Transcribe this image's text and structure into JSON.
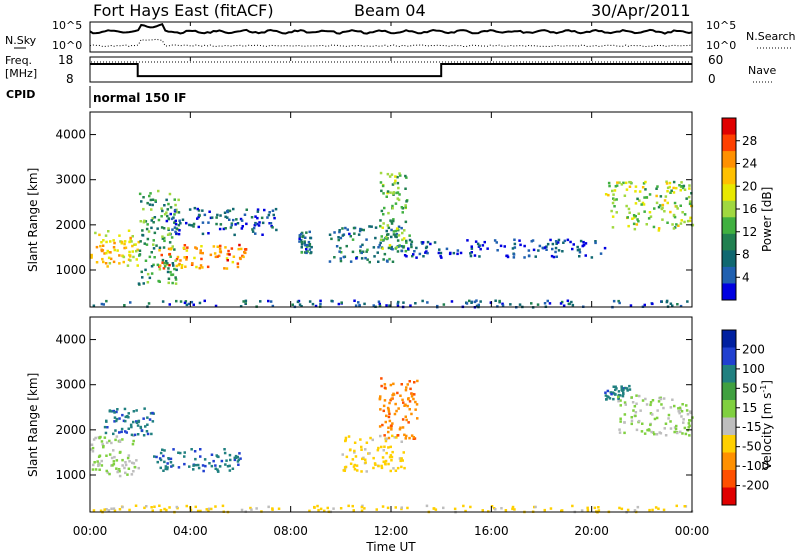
{
  "header": {
    "station": "Fort Hays East (fitACF)",
    "beam": "Beam 04",
    "date": "30/Apr/2011"
  },
  "noise_panel": {
    "left_label": "N.Sky",
    "left_ticks": [
      "10^5",
      "10^0"
    ],
    "right_label": "N.Search",
    "right_ticks": [
      "10^5",
      "10^0"
    ]
  },
  "freq_panel": {
    "left_label_line1": "Freq.",
    "left_label_line2": "[MHz]",
    "left_ticks": [
      "18",
      "8"
    ],
    "right_label": "Nave",
    "right_ticks": [
      "60",
      "0"
    ],
    "freq_mhz_segments": [
      {
        "start_h": 0.0,
        "end_h": 1.9,
        "value": 18.0
      },
      {
        "start_h": 1.9,
        "end_h": 14.0,
        "value": 10.9
      },
      {
        "start_h": 14.0,
        "end_h": 24.0,
        "value": 18.0
      }
    ]
  },
  "cpid": {
    "label": "CPID",
    "value": "normal 150 IF"
  },
  "power_panel": {
    "ylabel": "Slant Range [km]",
    "colorbar_label": "Power [dB]",
    "colorbar_ticks": [
      "28",
      "24",
      "20",
      "16",
      "12",
      "8",
      "4"
    ],
    "colorbar_colors": [
      "#e00000",
      "#ff4000",
      "#ff9000",
      "#ffc000",
      "#e8e800",
      "#a0d840",
      "#40b040",
      "#208050",
      "#106870",
      "#2060b0",
      "#0000e0"
    ]
  },
  "velocity_panel": {
    "ylabel": "Slant Range [km]",
    "colorbar_label_main": "Velocity [m s",
    "colorbar_label_sup": "-1",
    "colorbar_label_end": "]",
    "colorbar_ticks": [
      "200",
      "100",
      "50",
      "15",
      "-15",
      "-50",
      "-100",
      "-200"
    ],
    "colorbar_colors": [
      "#0020a0",
      "#2040d0",
      "#208080",
      "#40a040",
      "#80d040",
      "#bebebe",
      "#ffd000",
      "#ff9000",
      "#ff5000",
      "#e00000"
    ]
  },
  "x_axis": {
    "label": "Time UT",
    "ticks": [
      "00:00",
      "04:00",
      "08:00",
      "12:00",
      "16:00",
      "20:00",
      "00:00"
    ]
  },
  "y_axis_ticks": [
    "4000",
    "3000",
    "2000",
    "1000"
  ],
  "chart_data": {
    "type": "heatmap",
    "x_range_hours": [
      0,
      24
    ],
    "y_range_km": [
      180,
      4500
    ],
    "power_features": [
      {
        "t0": 0.0,
        "t1": 1.9,
        "r0": 1100,
        "r1": 1900,
        "level_db": 20
      },
      {
        "t0": 2.7,
        "t1": 6.2,
        "r0": 1050,
        "r1": 1600,
        "level_db": 24
      },
      {
        "t0": 1.9,
        "t1": 3.5,
        "r0": 700,
        "r1": 2800,
        "level_db": 12
      },
      {
        "t0": 3.0,
        "t1": 7.5,
        "r0": 1800,
        "r1": 2400,
        "level_db": 6
      },
      {
        "t0": 8.3,
        "t1": 8.8,
        "r0": 1400,
        "r1": 1900,
        "level_db": 8
      },
      {
        "t0": 9.5,
        "t1": 12.8,
        "r0": 1200,
        "r1": 2000,
        "level_db": 8
      },
      {
        "t0": 11.5,
        "t1": 12.6,
        "r0": 1500,
        "r1": 3200,
        "level_db": 14
      },
      {
        "t0": 12.5,
        "t1": 20.5,
        "r0": 1300,
        "r1": 1700,
        "level_db": 4
      },
      {
        "t0": 20.5,
        "t1": 24.0,
        "r0": 1900,
        "r1": 3000,
        "level_db": 16
      },
      {
        "t0": 0.0,
        "t1": 24.0,
        "r0": 200,
        "r1": 350,
        "level_db": 6
      }
    ],
    "velocity_features": [
      {
        "t0": 0.0,
        "t1": 1.9,
        "r0": 1000,
        "r1": 1900,
        "velocity_ms": 0
      },
      {
        "t0": 2.5,
        "t1": 6.0,
        "r0": 1100,
        "r1": 1600,
        "velocity_ms": 150
      },
      {
        "t0": 0.5,
        "t1": 2.5,
        "r0": 1900,
        "r1": 2500,
        "velocity_ms": 150
      },
      {
        "t0": 10.0,
        "t1": 12.5,
        "r0": 1100,
        "r1": 1900,
        "velocity_ms": -75
      },
      {
        "t0": 11.5,
        "t1": 13.0,
        "r0": 1800,
        "r1": 3200,
        "velocity_ms": -150
      },
      {
        "t0": 20.5,
        "t1": 21.5,
        "r0": 2700,
        "r1": 3000,
        "velocity_ms": 150
      },
      {
        "t0": 21.0,
        "t1": 24.0,
        "r0": 1900,
        "r1": 2800,
        "velocity_ms": 0
      },
      {
        "t0": 0.0,
        "t1": 24.0,
        "r0": 200,
        "r1": 350,
        "velocity_ms": -75
      }
    ]
  }
}
